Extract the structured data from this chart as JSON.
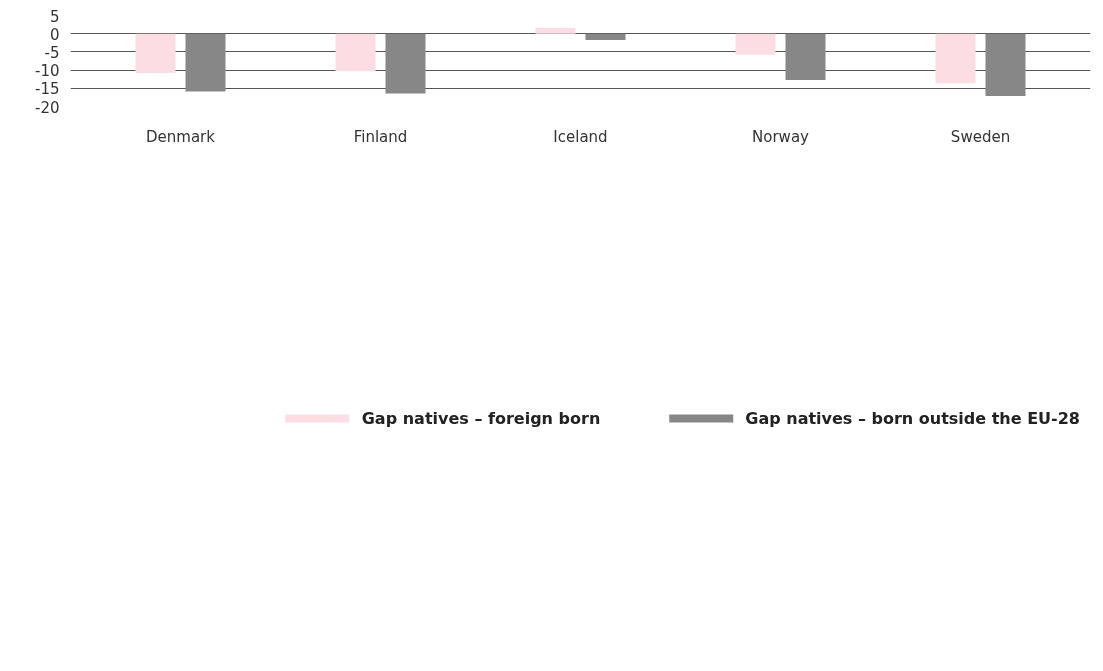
{
  "chart_data": {
    "type": "bar",
    "categories": [
      "Denmark",
      "Finland",
      "Iceland",
      "Norway",
      "Sweden"
    ],
    "series": [
      {
        "name": "Gap natives – foreign born",
        "color": "#fbdde3",
        "values": [
          -10.8,
          -10.3,
          1.6,
          -5.8,
          -13.6
        ]
      },
      {
        "name": "Gap natives – born outside the EU-28",
        "color": "#878787",
        "values": [
          -15.9,
          -16.4,
          -1.7,
          -12.7,
          -17.1
        ]
      }
    ],
    "ylim": [
      -20,
      5
    ],
    "yticks": [
      -20,
      -15,
      -10,
      -5,
      0,
      5
    ],
    "grid": "y",
    "legend": "bottom"
  }
}
